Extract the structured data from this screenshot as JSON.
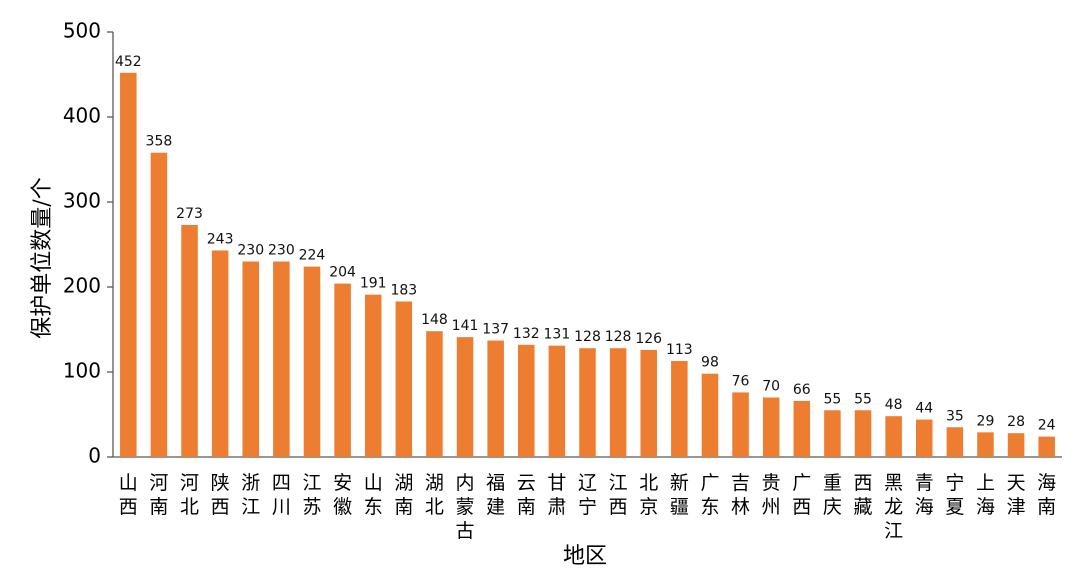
{
  "chart_data": {
    "type": "bar",
    "xlabel": "地区",
    "ylabel": "保护单位数量/个",
    "ylim": [
      0,
      500
    ],
    "yticks": [
      0,
      100,
      200,
      300,
      400,
      500
    ],
    "grid": false,
    "legend": "none",
    "bar_color": "#ED7D31",
    "categories": [
      "山西",
      "河南",
      "河北",
      "陕西",
      "浙江",
      "四川",
      "江苏",
      "安徽",
      "山东",
      "湖南",
      "湖北",
      "内蒙古",
      "福建",
      "云南",
      "甘肃",
      "辽宁",
      "江西",
      "北京",
      "新疆",
      "广东",
      "吉林",
      "贵州",
      "广西",
      "重庆",
      "西藏",
      "黑龙江",
      "青海",
      "宁夏",
      "上海",
      "天津",
      "海南"
    ],
    "values": [
      452,
      358,
      273,
      243,
      230,
      230,
      224,
      204,
      191,
      183,
      148,
      141,
      137,
      132,
      131,
      128,
      128,
      126,
      113,
      98,
      76,
      70,
      66,
      55,
      55,
      48,
      44,
      35,
      29,
      28,
      24
    ]
  }
}
